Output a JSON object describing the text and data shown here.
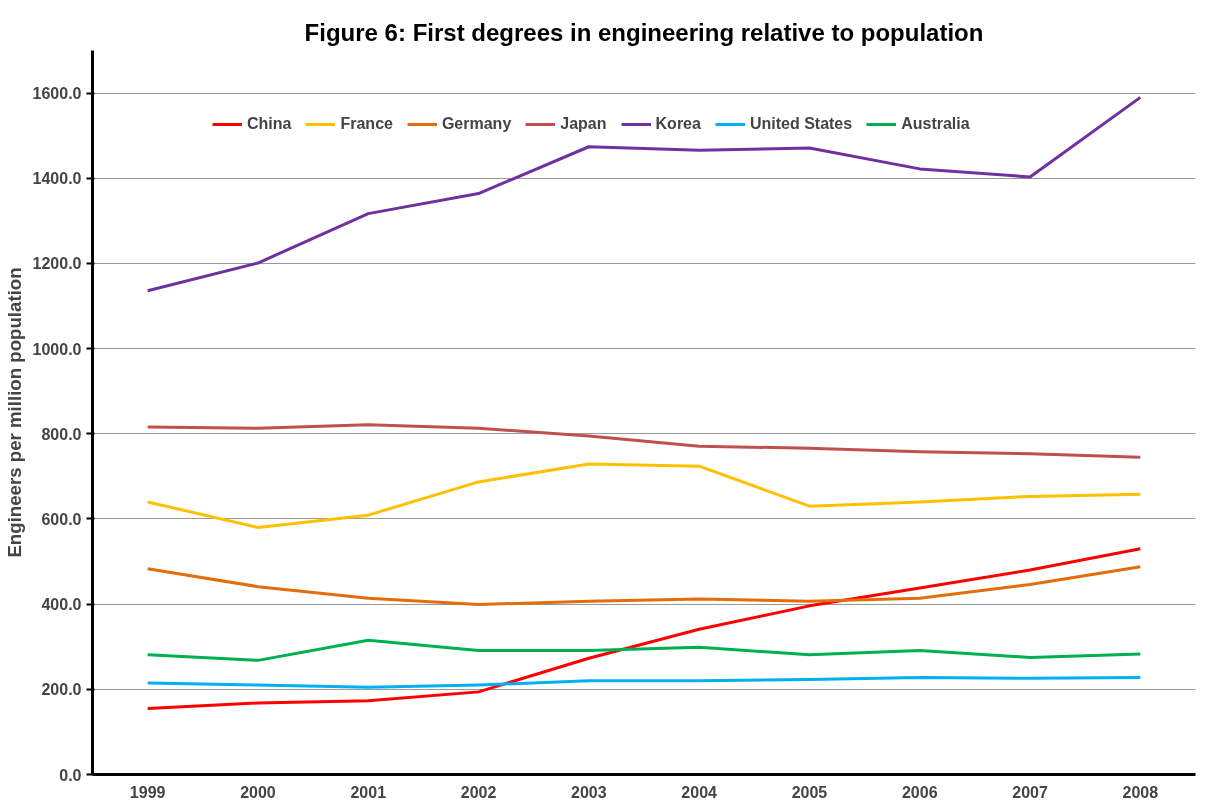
{
  "chart_data": {
    "type": "line",
    "title": "Figure 6: First degrees in engineering relative to population",
    "ylabel": "Engineers per million population",
    "categories": [
      "1999",
      "2000",
      "2001",
      "2002",
      "2003",
      "2004",
      "2005",
      "2006",
      "2007",
      "2008"
    ],
    "series": [
      {
        "name": "China",
        "color": "#ff0000",
        "values": [
          155,
          168,
          173,
          194,
          273,
          341,
          396,
          438,
          480,
          530
        ]
      },
      {
        "name": "France",
        "color": "#ffc000",
        "values": [
          640,
          580,
          609,
          687,
          729,
          724,
          630,
          640,
          653,
          658
        ]
      },
      {
        "name": "Germany",
        "color": "#e46c0a",
        "values": [
          483,
          441,
          414,
          399,
          407,
          412,
          407,
          414,
          446,
          488
        ]
      },
      {
        "name": "Japan",
        "color": "#c0504d",
        "values": [
          816,
          813,
          821,
          813,
          795,
          771,
          766,
          758,
          753,
          745
        ]
      },
      {
        "name": "Korea",
        "color": "#7030a0",
        "values": [
          1136,
          1201,
          1317,
          1364,
          1474,
          1466,
          1471,
          1422,
          1403,
          1590
        ]
      },
      {
        "name": "United States",
        "color": "#00b0f0",
        "values": [
          215,
          210,
          205,
          210,
          220,
          220,
          223,
          228,
          226,
          228
        ]
      },
      {
        "name": "Australia",
        "color": "#00b050",
        "values": [
          281,
          268,
          315,
          291,
          291,
          299,
          281,
          291,
          275,
          283
        ]
      }
    ],
    "ylim": [
      0,
      1700
    ],
    "yticks": [
      {
        "value": 0,
        "label": "0.0"
      },
      {
        "value": 200,
        "label": "200.0"
      },
      {
        "value": 400,
        "label": "400.0"
      },
      {
        "value": 600,
        "label": "600.0"
      },
      {
        "value": 800,
        "label": "800.0"
      },
      {
        "value": 1000,
        "label": "1000.0"
      },
      {
        "value": 1200,
        "label": "1200.0"
      },
      {
        "value": 1400,
        "label": "1400.0"
      },
      {
        "value": 1600,
        "label": "1600.0"
      }
    ],
    "grid": "y",
    "legend": "top",
    "marker": "none",
    "line_style": "solid"
  }
}
